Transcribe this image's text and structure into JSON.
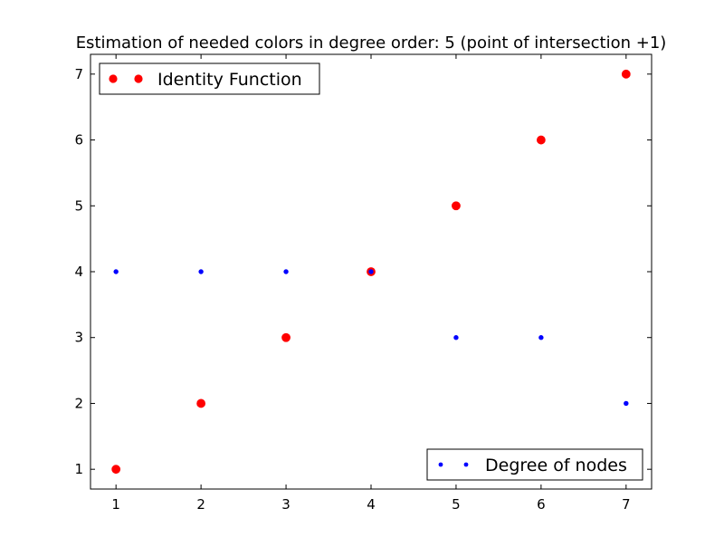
{
  "chart_data": {
    "type": "scatter",
    "title": "Estimation of needed colors in degree order: 5 (point of intersection +1)",
    "xlabel": "",
    "ylabel": "",
    "xlim": [
      0.7,
      7.3
    ],
    "ylim": [
      0.7,
      7.3
    ],
    "xticks": [
      1,
      2,
      3,
      4,
      5,
      6,
      7
    ],
    "yticks": [
      1,
      2,
      3,
      4,
      5,
      6,
      7
    ],
    "grid": false,
    "series": [
      {
        "name": "Identity Function",
        "color": "#ff0000",
        "marker": "large-dot",
        "legend_position": "top-left",
        "x": [
          1,
          2,
          3,
          4,
          5,
          6,
          7
        ],
        "y": [
          1,
          2,
          3,
          4,
          5,
          6,
          7
        ]
      },
      {
        "name": "Degree of nodes",
        "color": "#0000ff",
        "marker": "small-dot",
        "legend_position": "bottom-right",
        "x": [
          1,
          2,
          3,
          4,
          5,
          6,
          7
        ],
        "y": [
          4,
          4,
          4,
          4,
          3,
          3,
          2
        ]
      }
    ]
  }
}
